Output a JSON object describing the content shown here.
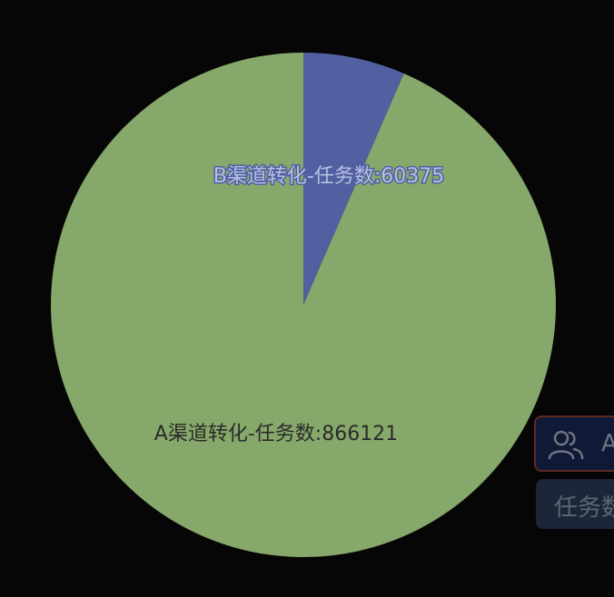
{
  "chart_data": {
    "type": "pie",
    "title": "",
    "slices": [
      {
        "name": "B渠道转化-任务数",
        "value": 60375,
        "label": "B渠道转化-任务数:60375",
        "color": "#5160a0",
        "label_color": "#b7bfe4"
      },
      {
        "name": "A渠道转化-任务数",
        "value": 866121,
        "label": "A渠道转化-任务数:866121",
        "color": "#86a86a",
        "label_color": "#2b2b2b"
      }
    ]
  },
  "side_panel": {
    "card": {
      "icon": "users-icon",
      "label": "A",
      "border_color": "#5a2a22",
      "background": "#101a36"
    },
    "tag": {
      "label": "任务数",
      "background": "#1b2738"
    }
  },
  "colors": {
    "background": "#060606"
  }
}
